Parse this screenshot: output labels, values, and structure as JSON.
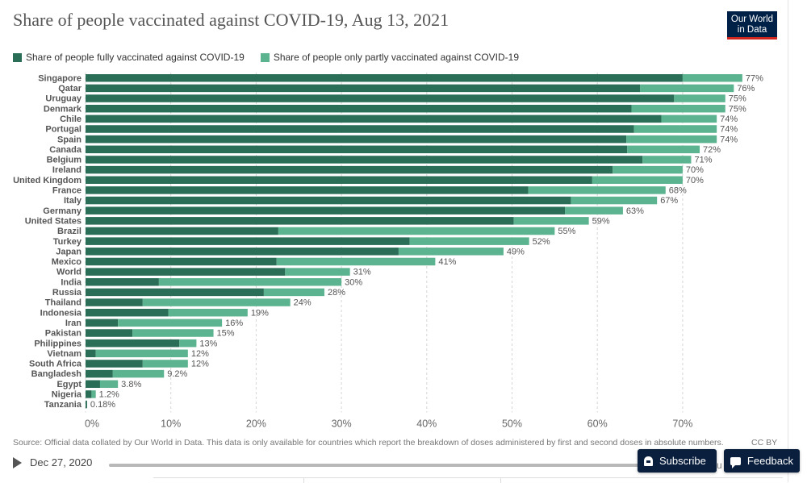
{
  "header": {
    "title": "Share of people vaccinated against COVID-19, Aug 13, 2021",
    "logo_line1": "Our World",
    "logo_line2": "in Data"
  },
  "colors": {
    "full": "#2b6e58",
    "partial": "#5cb38f"
  },
  "legend": {
    "full": "Share of people fully vaccinated against COVID-19",
    "partial": "Share of people only partly vaccinated against COVID-19"
  },
  "chart_data": {
    "type": "bar",
    "orientation": "horizontal",
    "stacked": true,
    "title": "Share of people vaccinated against COVID-19, Aug 13, 2021",
    "categories": [
      "Singapore",
      "Qatar",
      "Uruguay",
      "Denmark",
      "Chile",
      "Portugal",
      "Spain",
      "Canada",
      "Belgium",
      "Ireland",
      "United Kingdom",
      "France",
      "Italy",
      "Germany",
      "United States",
      "Brazil",
      "Turkey",
      "Japan",
      "Mexico",
      "World",
      "India",
      "Russia",
      "Thailand",
      "Indonesia",
      "Iran",
      "Pakistan",
      "Philippines",
      "Vietnam",
      "South Africa",
      "Bangladesh",
      "Egypt",
      "Nigeria",
      "Tanzania"
    ],
    "series": [
      {
        "name": "Share of people fully vaccinated against COVID-19",
        "values": [
          70,
          65,
          69,
          64,
          67.5,
          64.3,
          63.4,
          63.5,
          65.3,
          61.8,
          59.4,
          51.9,
          56.9,
          56.2,
          50.2,
          22.6,
          38,
          36.7,
          22.4,
          23.4,
          8.6,
          20.9,
          6.7,
          9.7,
          3.8,
          5.5,
          11,
          1.2,
          6.7,
          3.2,
          1.7,
          0.7,
          0.18
        ]
      },
      {
        "name": "Share of people only partly vaccinated against COVID-19",
        "values": [
          7,
          11,
          6,
          11,
          6.5,
          9.7,
          10.6,
          8.5,
          5.7,
          8.2,
          10.6,
          16.1,
          10.1,
          6.8,
          8.8,
          32.4,
          14,
          12.3,
          18.6,
          7.6,
          21.4,
          7.1,
          17.3,
          9.3,
          12.2,
          9.5,
          2,
          10.8,
          5.3,
          6,
          2.1,
          0.5,
          0
        ]
      }
    ],
    "totals": [
      "77%",
      "76%",
      "75%",
      "75%",
      "74%",
      "74%",
      "74%",
      "72%",
      "71%",
      "70%",
      "70%",
      "68%",
      "67%",
      "63%",
      "59%",
      "55%",
      "52%",
      "49%",
      "41%",
      "31%",
      "30%",
      "28%",
      "24%",
      "19%",
      "16%",
      "15%",
      "13%",
      "12%",
      "12%",
      "9.2%",
      "3.8%",
      "1.2%",
      "0.18%"
    ],
    "xlim": [
      0,
      77
    ],
    "xticks": [
      0,
      10,
      20,
      30,
      40,
      50,
      60,
      70
    ],
    "xtick_labels": [
      "0%",
      "10%",
      "20%",
      "30%",
      "40%",
      "50%",
      "60%",
      "70%"
    ],
    "grid": "vertical dashed",
    "legend_position": "top-left"
  },
  "footer": {
    "source": "Source: Official data collated by Our World in Data. This data is only available for countries which report the breakdown of doses administered by first and second doses in absolute numbers.",
    "license": "CC BY",
    "timeline_start": "Dec 27, 2020",
    "timeline_end": "Au"
  },
  "buttons": {
    "subscribe": "Subscribe",
    "feedback": "Feedback"
  }
}
